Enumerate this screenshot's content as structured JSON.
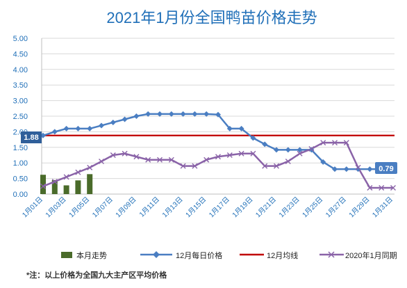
{
  "chart_data": {
    "type": "line",
    "title": "2021年1月份全国鸭苗价格走势",
    "ylim": [
      0,
      5
    ],
    "yticks": [
      "0.00",
      "0.50",
      "1.00",
      "1.50",
      "2.00",
      "2.50",
      "3.00",
      "3.50",
      "4.00",
      "4.50",
      "5.00"
    ],
    "x_labels": [
      "1月01日",
      "1月03日",
      "1月05日",
      "1月07日",
      "1月09日",
      "1月11日",
      "1月13日",
      "1月15日",
      "1月17日",
      "1月19日",
      "1月21日",
      "1月23日",
      "1月25日",
      "1月27日",
      "1月29日",
      "1月31日"
    ],
    "series": [
      {
        "name": "本月走势",
        "type": "bar",
        "color": "#4a6b2a",
        "values": [
          0.62,
          0.45,
          0.28,
          0.44,
          0.64
        ]
      },
      {
        "name": "12月每日价格",
        "type": "line",
        "color": "#4a7ec2",
        "marker": "diamond",
        "values": [
          1.88,
          2.0,
          2.1,
          2.1,
          2.1,
          2.2,
          2.3,
          2.4,
          2.5,
          2.57,
          2.57,
          2.57,
          2.57,
          2.57,
          2.57,
          2.55,
          2.1,
          2.1,
          1.8,
          1.6,
          1.42,
          1.42,
          1.42,
          1.42,
          1.03,
          0.8,
          0.8,
          0.8,
          0.8,
          0.8,
          0.79
        ]
      },
      {
        "name": "12月均线",
        "type": "line",
        "color": "#c00000",
        "value": 1.88
      },
      {
        "name": "2020年1月同期",
        "type": "line",
        "color": "#8a63a8",
        "marker": "x",
        "values": [
          0.25,
          0.4,
          0.55,
          0.7,
          0.85,
          1.05,
          1.25,
          1.3,
          1.2,
          1.1,
          1.1,
          1.1,
          0.9,
          0.9,
          1.1,
          1.2,
          1.25,
          1.3,
          1.3,
          0.9,
          0.9,
          1.05,
          1.3,
          1.45,
          1.65,
          1.65,
          1.65,
          0.85,
          0.2,
          0.2,
          0.2
        ]
      }
    ],
    "annotations": {
      "avg_label": "1.88",
      "last_label": "0.79"
    }
  },
  "legend": {
    "bar_label": "本月走势",
    "dec_daily_label": "12月每日价格",
    "dec_avg_label": "12月均线",
    "prev_year_label": "2020年1月同期"
  },
  "note": "*注：以上价格为全国九大主产区平均价格"
}
